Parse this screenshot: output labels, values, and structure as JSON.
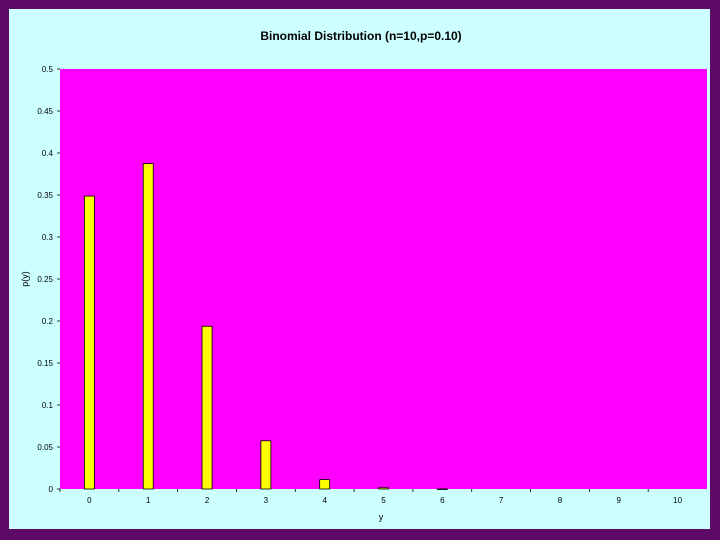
{
  "colors": {
    "frame": "#5c0a66",
    "background": "#ccffff",
    "plot_area": "#ff00ff",
    "bar_fill": "#ffff00",
    "bar_stroke": "#000000"
  },
  "chart_data": {
    "type": "bar",
    "title": "Binomial Distribution (n=10,p=0.10)",
    "xlabel": "y",
    "ylabel": "p(y)",
    "categories": [
      "0",
      "1",
      "2",
      "3",
      "4",
      "5",
      "6",
      "7",
      "8",
      "9",
      "10"
    ],
    "values": [
      0.3487,
      0.3874,
      0.1937,
      0.0574,
      0.0112,
      0.0015,
      0.0001,
      0.0,
      0.0,
      0.0,
      0.0
    ],
    "ylim": [
      0,
      0.5
    ],
    "yticks": [
      "0",
      "0.05",
      "0.1",
      "0.15",
      "0.2",
      "0.25",
      "0.3",
      "0.35",
      "0.4",
      "0.45",
      "0.5"
    ],
    "grid": false,
    "legend": "none"
  }
}
